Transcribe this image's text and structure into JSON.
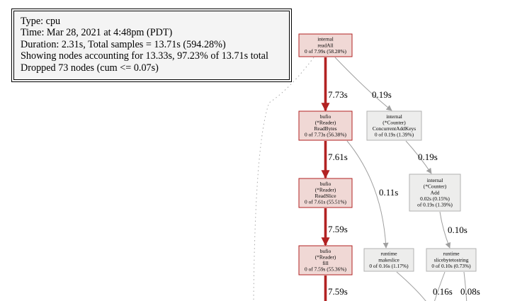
{
  "legend": {
    "lines": [
      "Type: cpu",
      "Time: Mar 28, 2021 at 4:48pm (PDT)",
      "Duration: 2.31s, Total samples = 13.71s (594.28%)",
      "Showing nodes accounting for 13.33s, 97.23% of 13.71s total",
      "Dropped 73 nodes (cum <= 0.07s)"
    ]
  },
  "colors": {
    "hot_fill": "#f0d8d5",
    "hot_stroke": "#b22222",
    "cool_fill": "#ededec",
    "cool_stroke": "#b2b2b2",
    "hot_edge": "#b22222",
    "cool_edge": "#a0a0a0",
    "dotted_edge": "#a8a8a8"
  },
  "nodes": [
    {
      "id": "readall",
      "lines": [
        "internal",
        "readAll",
        "0 of 7.99s (58.28%)"
      ],
      "hot": true
    },
    {
      "id": "readbytes",
      "lines": [
        "bufio",
        "(*Reader)",
        "ReadBytes",
        "0 of 7.73s (56.38%)"
      ],
      "hot": true
    },
    {
      "id": "readslice",
      "lines": [
        "bufio",
        "(*Reader)",
        "ReadSlice",
        "0 of 7.61s (55.51%)"
      ],
      "hot": true
    },
    {
      "id": "fill",
      "lines": [
        "bufio",
        "(*Reader)",
        "fill",
        "0 of 7.59s (55.36%)"
      ],
      "hot": true
    },
    {
      "id": "concurrentaddkeys",
      "lines": [
        "internal",
        "(*Counter)",
        "ConcurrentAddKeys",
        "0 of 0.19s (1.39%)"
      ],
      "hot": false
    },
    {
      "id": "add",
      "lines": [
        "internal",
        "(*Counter)",
        "Add",
        "0.02s (0.15%)",
        "of 0.19s (1.39%)"
      ],
      "hot": false
    },
    {
      "id": "makeslice",
      "lines": [
        "runtime",
        "makeslice",
        "0 of 0.16s (1.17%)"
      ],
      "hot": false
    },
    {
      "id": "slicebytetostring",
      "lines": [
        "runtime",
        "slicebytetostring",
        "0 of 0.10s (0.73%)"
      ],
      "hot": false
    }
  ],
  "edges": [
    {
      "id": "readall-readbytes",
      "label": "7.73s"
    },
    {
      "id": "readall-concurrentaddkeys",
      "label": "0.19s"
    },
    {
      "id": "readbytes-readslice",
      "label": "7.61s"
    },
    {
      "id": "readbytes-makeslice",
      "label": "0.11s"
    },
    {
      "id": "concurrentaddkeys-add",
      "label": "0.19s"
    },
    {
      "id": "readslice-fill",
      "label": "7.59s"
    },
    {
      "id": "add-slicebytetostring",
      "label": "0.10s"
    },
    {
      "id": "fill-down",
      "label": "7.59s"
    },
    {
      "id": "makeslice-down",
      "label": "0.16s"
    },
    {
      "id": "slicebytetostring-down",
      "label": "0.08s"
    }
  ]
}
